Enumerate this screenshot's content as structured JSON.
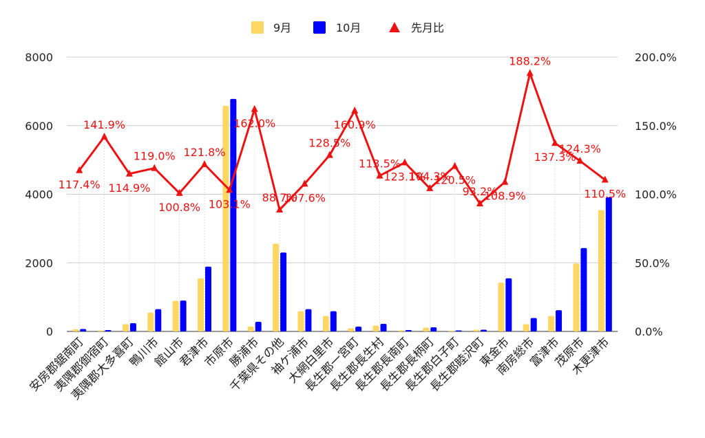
{
  "chart_data": {
    "type": "bar",
    "categories": [
      "安房郡鋸南町",
      "夷隅郡御宿町",
      "夷隅郡大多喜町",
      "鴨川市",
      "館山市",
      "君津市",
      "市原市",
      "勝浦市",
      "千葉県その他",
      "袖ケ浦市",
      "大網白里市",
      "長生郡一宮町",
      "長生郡長生村",
      "長生郡長南町",
      "長生郡長柄町",
      "長生郡白子町",
      "長生郡睦沢町",
      "東金市",
      "南房総市",
      "富津市",
      "茂原市",
      "木更津市"
    ],
    "series": [
      {
        "name": "9月",
        "color": "#FDD663",
        "values": [
          60,
          30,
          210,
          550,
          890,
          1550,
          6580,
          140,
          2560,
          590,
          450,
          90,
          170,
          30,
          110,
          20,
          50,
          1420,
          210,
          450,
          1980,
          3540
        ]
      },
      {
        "name": "10月",
        "color": "#0000FF",
        "values": [
          70,
          40,
          240,
          650,
          900,
          1890,
          6780,
          280,
          2300,
          650,
          590,
          140,
          220,
          40,
          120,
          30,
          50,
          1550,
          390,
          620,
          2430,
          3910
        ]
      }
    ],
    "line_series": {
      "name": "先月比",
      "color": "#EE1111",
      "marker": "triangle",
      "values": [
        117.4,
        141.9,
        114.9,
        119.0,
        100.8,
        121.8,
        103.1,
        162.0,
        88.7,
        107.6,
        128.5,
        160.9,
        113.5,
        123.1,
        104.3,
        120.5,
        93.2,
        108.9,
        188.2,
        137.3,
        124.3,
        110.5
      ],
      "labels": [
        "117.4%",
        "141.9%",
        "114.9%",
        "119.0%",
        "100.8%",
        "121.8%",
        "103.1%",
        "162.0%",
        "88.7%",
        "107.6%",
        "128.5%",
        "160.9%",
        "113.5%",
        "123.1%",
        "104.3%",
        "120.5%",
        "93.2%",
        "108.9%",
        "188.2%",
        "137.3%",
        "124.3%",
        "110.5%"
      ]
    },
    "y_left": {
      "min": 0,
      "max": 8000,
      "ticks": [
        "0",
        "2000",
        "4000",
        "6000",
        "8000"
      ]
    },
    "y_right": {
      "min": 0,
      "max": 200,
      "ticks": [
        "0.0%",
        "50.0%",
        "100.0%",
        "150.0%",
        "200.0%"
      ]
    },
    "grid": true,
    "legend_position": "top-center"
  }
}
